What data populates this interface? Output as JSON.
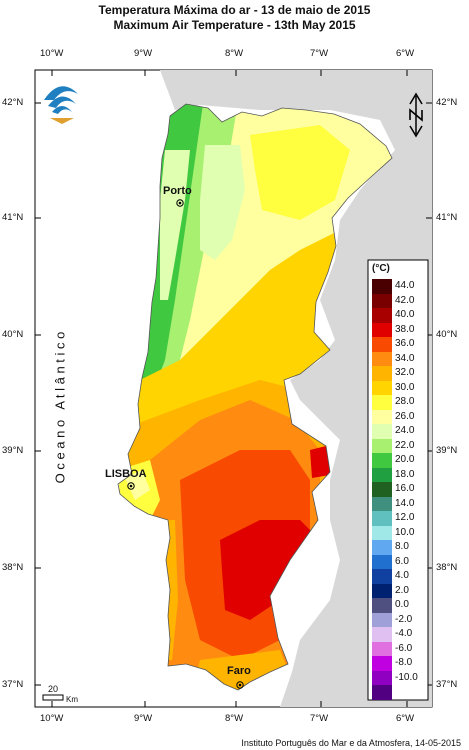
{
  "title_pt": "Temperatura Máxima do ar - 13 de maio de 2015",
  "title_en": "Maximum Air Temperature - 13th May 2015",
  "footer": "Instituto Português do Mar e da Atmosfera, 14-05-2015",
  "ocean_label": "O c e a n o   A t l â n t i c o",
  "cities": [
    {
      "name": "Porto"
    },
    {
      "name": "LISBOA"
    },
    {
      "name": "Faro"
    }
  ],
  "lon_labels": [
    "10°W",
    "9°W",
    "8°W",
    "7°W",
    "6°W"
  ],
  "lat_labels": [
    "42°N",
    "41°N",
    "40°N",
    "39°N",
    "38°N",
    "37°N"
  ],
  "scale_bar": {
    "value": "20",
    "unit": "Km"
  },
  "north_arrow": "N",
  "legend": {
    "unit": "(°C)",
    "items": [
      {
        "label": "44.0",
        "color": "#4a0000"
      },
      {
        "label": "42.0",
        "color": "#7a0000"
      },
      {
        "label": "40.0",
        "color": "#a80000"
      },
      {
        "label": "38.0",
        "color": "#e00000"
      },
      {
        "label": "36.0",
        "color": "#f84a00"
      },
      {
        "label": "34.0",
        "color": "#ff8c10"
      },
      {
        "label": "32.0",
        "color": "#ffb400"
      },
      {
        "label": "30.0",
        "color": "#ffd400"
      },
      {
        "label": "28.0",
        "color": "#ffff40"
      },
      {
        "label": "26.0",
        "color": "#ffffa0"
      },
      {
        "label": "24.0",
        "color": "#e0ffb0"
      },
      {
        "label": "22.0",
        "color": "#a8f070"
      },
      {
        "label": "20.0",
        "color": "#40c840"
      },
      {
        "label": "18.0",
        "color": "#20a040"
      },
      {
        "label": "16.0",
        "color": "#206020"
      },
      {
        "label": "14.0",
        "color": "#409080"
      },
      {
        "label": "12.0",
        "color": "#60c0c0"
      },
      {
        "label": "10.0",
        "color": "#a0e8e8"
      },
      {
        "label": "8.0",
        "color": "#60a8f0"
      },
      {
        "label": "6.0",
        "color": "#2070d0"
      },
      {
        "label": "4.0",
        "color": "#1040a0"
      },
      {
        "label": "2.0",
        "color": "#002070"
      },
      {
        "label": "0.0",
        "color": "#505080"
      },
      {
        "label": "-2.0",
        "color": "#a0a0d8"
      },
      {
        "label": "-4.0",
        "color": "#e0c0f0"
      },
      {
        "label": "-6.0",
        "color": "#e070e0"
      },
      {
        "label": "-8.0",
        "color": "#c000e0"
      },
      {
        "label": "-10.0",
        "color": "#9000c0"
      },
      {
        "label": "",
        "color": "#500080"
      }
    ]
  },
  "colors": {
    "land_background": "#d8d8d8",
    "sea": "#ffffff",
    "frame": "#000000"
  }
}
